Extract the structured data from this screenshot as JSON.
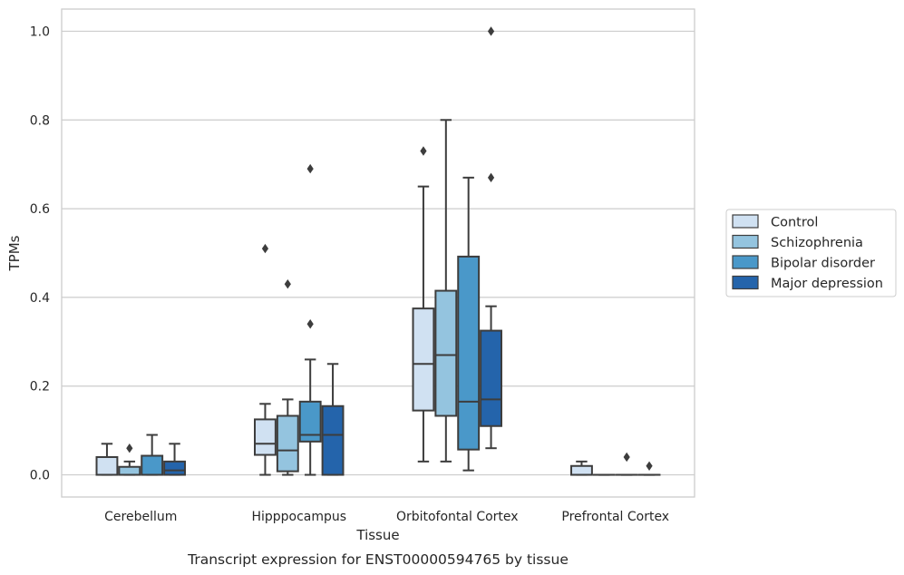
{
  "chart_data": {
    "type": "box",
    "title": "",
    "xlabel": "Tissue",
    "ylabel": "TPMs",
    "caption": "Transcript expression for ENST00000594765 by tissue",
    "ylim": [
      -0.05,
      1.05
    ],
    "yticks": [
      0.0,
      0.2,
      0.4,
      0.6,
      0.8,
      1.0
    ],
    "ytick_labels": [
      "0.0",
      "0.2",
      "0.4",
      "0.6",
      "0.8",
      "1.0"
    ],
    "grid": "horizontal",
    "legend_position": "right",
    "categories": [
      "Cerebellum",
      "Hipppocampus",
      "Orbitofontal Cortex",
      "Prefrontal Cortex"
    ],
    "series": [
      {
        "name": "Control",
        "color": "#d0e1f2",
        "boxes": [
          {
            "whislo": 0.0,
            "q1": 0.0,
            "med": 0.0,
            "q3": 0.04,
            "whishi": 0.07,
            "fliers": []
          },
          {
            "whislo": 0.0,
            "q1": 0.045,
            "med": 0.07,
            "q3": 0.125,
            "whishi": 0.16,
            "fliers": [
              0.51
            ]
          },
          {
            "whislo": 0.03,
            "q1": 0.145,
            "med": 0.25,
            "q3": 0.375,
            "whishi": 0.65,
            "fliers": [
              0.73
            ]
          },
          {
            "whislo": 0.0,
            "q1": 0.0,
            "med": 0.0,
            "q3": 0.02,
            "whishi": 0.03,
            "fliers": []
          }
        ]
      },
      {
        "name": "Schizophrenia",
        "color": "#94c4df",
        "boxes": [
          {
            "whislo": 0.0,
            "q1": 0.0,
            "med": 0.0,
            "q3": 0.018,
            "whishi": 0.03,
            "fliers": [
              0.06
            ]
          },
          {
            "whislo": 0.0,
            "q1": 0.008,
            "med": 0.055,
            "q3": 0.133,
            "whishi": 0.17,
            "fliers": [
              0.43
            ]
          },
          {
            "whislo": 0.03,
            "q1": 0.133,
            "med": 0.27,
            "q3": 0.415,
            "whishi": 0.8,
            "fliers": []
          },
          {
            "whislo": 0.0,
            "q1": 0.0,
            "med": 0.0,
            "q3": 0.0,
            "whishi": 0.0,
            "fliers": []
          }
        ]
      },
      {
        "name": "Bipolar disorder",
        "color": "#4a98c9",
        "boxes": [
          {
            "whislo": 0.0,
            "q1": 0.0,
            "med": 0.0,
            "q3": 0.043,
            "whishi": 0.09,
            "fliers": []
          },
          {
            "whislo": 0.0,
            "q1": 0.075,
            "med": 0.09,
            "q3": 0.165,
            "whishi": 0.26,
            "fliers": [
              0.34,
              0.69
            ]
          },
          {
            "whislo": 0.01,
            "q1": 0.057,
            "med": 0.165,
            "q3": 0.492,
            "whishi": 0.67,
            "fliers": []
          },
          {
            "whislo": 0.0,
            "q1": 0.0,
            "med": 0.0,
            "q3": 0.0,
            "whishi": 0.0,
            "fliers": [
              0.04
            ]
          }
        ]
      },
      {
        "name": "Major depression",
        "color": "#2464ab",
        "boxes": [
          {
            "whislo": 0.0,
            "q1": 0.0,
            "med": 0.01,
            "q3": 0.03,
            "whishi": 0.07,
            "fliers": []
          },
          {
            "whislo": 0.0,
            "q1": 0.0,
            "med": 0.09,
            "q3": 0.155,
            "whishi": 0.25,
            "fliers": []
          },
          {
            "whislo": 0.06,
            "q1": 0.11,
            "med": 0.17,
            "q3": 0.325,
            "whishi": 0.38,
            "fliers": [
              0.67,
              1.0
            ]
          },
          {
            "whislo": 0.0,
            "q1": 0.0,
            "med": 0.0,
            "q3": 0.0,
            "whishi": 0.0,
            "fliers": [
              0.02
            ]
          }
        ]
      }
    ]
  }
}
